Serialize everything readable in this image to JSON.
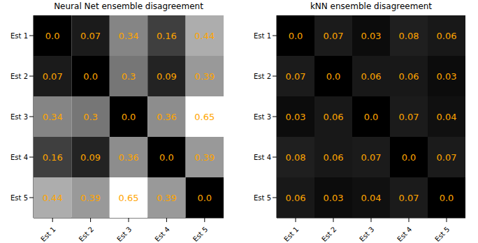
{
  "chart_data": [
    {
      "type": "heatmap",
      "title": "Neural Net ensemble disagreement",
      "x_categories": [
        "Est 1",
        "Est 2",
        "Est 3",
        "Est 4",
        "Est 5"
      ],
      "y_categories": [
        "Est 1",
        "Est 2",
        "Est 3",
        "Est 4",
        "Est 5"
      ],
      "cells": [
        [
          0,
          0.07,
          0.34,
          0.16,
          0.44
        ],
        [
          0.07,
          0,
          0.3,
          0.09,
          0.39
        ],
        [
          0.34,
          0.3,
          0,
          0.36,
          0.65
        ],
        [
          0.16,
          0.09,
          0.36,
          0,
          0.39
        ],
        [
          0.44,
          0.39,
          0.65,
          0.39,
          0
        ]
      ],
      "value_labels": [
        [
          "0.0",
          "0.07",
          "0.34",
          "0.16",
          "0.44"
        ],
        [
          "0.07",
          "0.0",
          "0.3",
          "0.09",
          "0.39"
        ],
        [
          "0.34",
          "0.3",
          "0.0",
          "0.36",
          "0.65"
        ],
        [
          "0.16",
          "0.09",
          "0.36",
          "0.0",
          "0.39"
        ],
        [
          "0.44",
          "0.39",
          "0.65",
          "0.39",
          "0.0"
        ]
      ],
      "color_range": [
        0,
        0.65
      ],
      "colors": [
        "#000000",
        "#ffffff"
      ],
      "data_labels": true
    },
    {
      "type": "heatmap",
      "title": "kNN ensemble disagreement",
      "x_categories": [
        "Est 1",
        "Est 2",
        "Est 3",
        "Est 4",
        "Est 5"
      ],
      "y_categories": [
        "Est 1",
        "Est 2",
        "Est 3",
        "Est 4",
        "Est 5"
      ],
      "cells": [
        [
          0,
          0.07,
          0.03,
          0.08,
          0.06
        ],
        [
          0.07,
          0,
          0.06,
          0.06,
          0.03
        ],
        [
          0.03,
          0.06,
          0,
          0.07,
          0.04
        ],
        [
          0.08,
          0.06,
          0.07,
          0,
          0.07
        ],
        [
          0.06,
          0.03,
          0.04,
          0.07,
          0
        ]
      ],
      "value_labels": [
        [
          "0.0",
          "0.07",
          "0.03",
          "0.08",
          "0.06"
        ],
        [
          "0.07",
          "0.0",
          "0.06",
          "0.06",
          "0.03"
        ],
        [
          "0.03",
          "0.06",
          "0.0",
          "0.07",
          "0.04"
        ],
        [
          "0.08",
          "0.06",
          "0.07",
          "0.0",
          "0.07"
        ],
        [
          "0.06",
          "0.03",
          "0.04",
          "0.07",
          "0.0"
        ]
      ],
      "color_range": [
        0,
        0.65
      ],
      "colors": [
        "#000000",
        "#ffffff"
      ],
      "data_labels": true
    }
  ]
}
